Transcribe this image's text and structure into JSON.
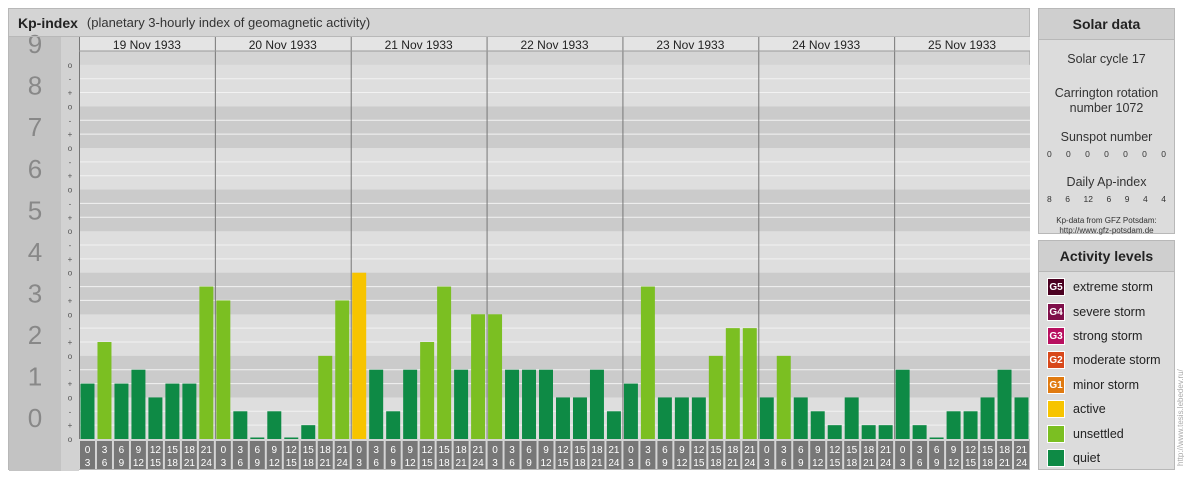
{
  "header": {
    "title": "Kp-index",
    "subtitle": "(planetary 3-hourly index of geomagnetic activity)"
  },
  "chart_data": {
    "type": "bar",
    "title": "Kp-index",
    "subtitle": "(planetary 3-hourly index of geomagnetic activity)",
    "ylim": [
      0,
      9.333
    ],
    "y_major_ticks": [
      "0",
      "1",
      "2",
      "3",
      "4",
      "5",
      "6",
      "7",
      "8",
      "9"
    ],
    "y_minor_labels": [
      "o",
      "+",
      "-"
    ],
    "days": [
      "19 Nov 1933",
      "20 Nov 1933",
      "21 Nov 1933",
      "22 Nov 1933",
      "23 Nov 1933",
      "24 Nov 1933",
      "25 Nov 1933"
    ],
    "interval_start": [
      "0",
      "3",
      "6",
      "9",
      "12",
      "15",
      "18",
      "21"
    ],
    "interval_end": [
      "3",
      "6",
      "9",
      "12",
      "15",
      "18",
      "21",
      "24"
    ],
    "values": [
      1.333,
      2.333,
      1.333,
      1.667,
      1.0,
      1.333,
      1.333,
      3.667,
      3.333,
      0.667,
      0.0,
      0.667,
      0.0,
      0.333,
      2.0,
      3.333,
      4.0,
      1.667,
      0.667,
      1.667,
      2.333,
      3.667,
      1.667,
      3.0,
      3.0,
      1.667,
      1.667,
      1.667,
      1.0,
      1.0,
      1.667,
      0.667,
      1.333,
      3.667,
      1.0,
      1.0,
      1.0,
      2.0,
      2.667,
      2.667,
      1.0,
      2.0,
      1.0,
      0.667,
      0.333,
      1.0,
      0.333,
      0.333,
      1.667,
      0.333,
      0.0,
      0.667,
      0.667,
      1.0,
      1.667,
      1.0
    ],
    "colors": {
      "quiet": "#0e8a45",
      "unsettled": "#7bbf22",
      "active": "#f7c400",
      "minor_storm": "#e07a10",
      "moderate_storm": "#d8481a",
      "strong_storm": "#b80f5f",
      "severe_storm": "#7f0f4a",
      "extreme_storm": "#4a0020"
    },
    "grid": true
  },
  "solar": {
    "title": "Solar data",
    "cycle": "Solar cycle 17",
    "carrington_line1": "Carrington rotation",
    "carrington_line2": "number 1072",
    "sunspot_label": "Sunspot number",
    "sunspot_values": [
      "0",
      "0",
      "0",
      "0",
      "0",
      "0",
      "0"
    ],
    "ap_label": "Daily Ap-index",
    "ap_values": [
      "8",
      "6",
      "12",
      "6",
      "9",
      "4",
      "4"
    ],
    "credit_line1": "Kp-data from GFZ Potsdam:",
    "credit_line2": "http://www.gfz-potsdam.de"
  },
  "activity": {
    "title": "Activity levels",
    "levels": [
      {
        "badge": "G5",
        "label": "extreme storm",
        "color": "#4a0020"
      },
      {
        "badge": "G4",
        "label": "severe storm",
        "color": "#7f0f4a"
      },
      {
        "badge": "G3",
        "label": "strong storm",
        "color": "#b80f5f"
      },
      {
        "badge": "G2",
        "label": "moderate storm",
        "color": "#d8481a"
      },
      {
        "badge": "G1",
        "label": "minor storm",
        "color": "#e07a10"
      },
      {
        "badge": "",
        "label": "active",
        "color": "#f7c400"
      },
      {
        "badge": "",
        "label": "unsettled",
        "color": "#7bbf22"
      },
      {
        "badge": "",
        "label": "quiet",
        "color": "#0e8a45"
      }
    ]
  },
  "watermark": "http://www.tesis.lebedev.ru/"
}
